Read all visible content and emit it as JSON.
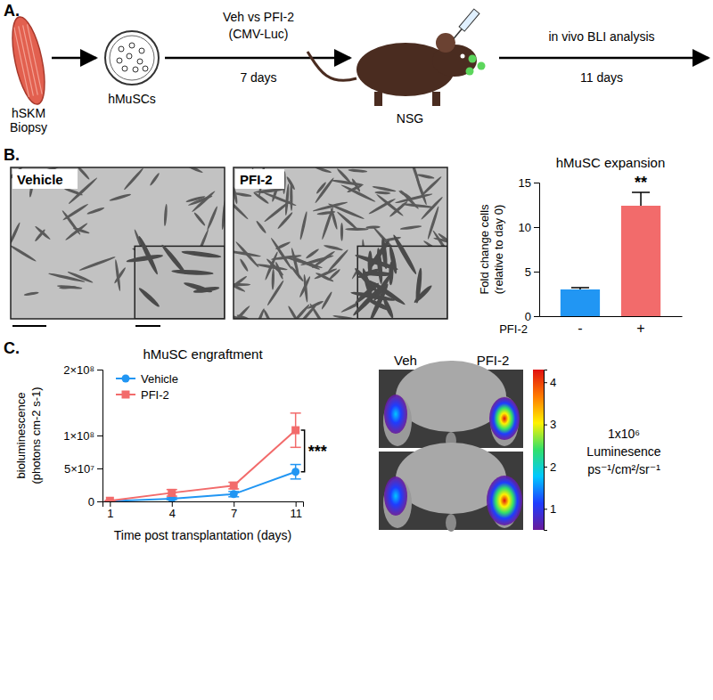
{
  "panel_a": {
    "label": "A.",
    "biopsy": [
      "hSKM",
      "Biopsy"
    ],
    "cells": "hMuSCs",
    "treatment": [
      "Veh vs PFI-2",
      "(CMV-Luc)"
    ],
    "culture_time": "7 days",
    "host": "NSG",
    "analysis": "in vivo BLI analysis",
    "analysis_time": "11 days"
  },
  "panel_b": {
    "label": "B.",
    "image_labels": [
      "Vehicle",
      "PFI-2"
    ]
  },
  "panel_c": {
    "label": "C.",
    "image_labels": [
      "Veh",
      "PFI-2"
    ],
    "colorbar": {
      "range": [
        0.5,
        4.3
      ],
      "ticks": [
        1,
        2,
        3,
        4
      ],
      "title": [
        "1x10⁶",
        "Luminesence",
        "ps⁻¹/cm²/sr⁻¹"
      ]
    }
  },
  "chart_data": [
    {
      "type": "bar",
      "title": "hMuSC expansion",
      "y_label": [
        "Fold change cells",
        "(relative to day 0)"
      ],
      "x_label": "PFI-2",
      "categories": [
        "-",
        "+"
      ],
      "values": [
        3.0,
        12.4
      ],
      "errors": [
        0.2,
        1.5
      ],
      "colors": [
        "#2196f3",
        "#f26b6b"
      ],
      "ylim": [
        0,
        15
      ],
      "yticks": [
        0,
        5,
        10,
        15
      ],
      "annotations": [
        "**"
      ]
    },
    {
      "type": "line",
      "title": "hMuSC engraftment",
      "x_label": "Time post transplantation (days)",
      "y_label": [
        "bioluminescence",
        "(photons cm-2 s-1)"
      ],
      "categories": [
        "1",
        "4",
        "7",
        "11"
      ],
      "series": [
        {
          "name": "Vehicle",
          "color": "#2196f3",
          "marker": "circle",
          "values": [
            500000,
            4000000,
            11000000,
            45000000
          ],
          "errors": [
            200000,
            1500000,
            4000000,
            11000000
          ]
        },
        {
          "name": "PFI-2",
          "color": "#f26b6b",
          "marker": "square",
          "values": [
            1000000,
            13000000,
            24000000,
            108000000
          ],
          "errors": [
            300000,
            5000000,
            5000000,
            26000000
          ]
        }
      ],
      "ylim": [
        0,
        200000000
      ],
      "yticks": [
        0,
        {
          "value": 50000000,
          "label": "5×10⁷"
        },
        {
          "value": 100000000,
          "label": "1×10⁸"
        },
        {
          "value": 200000000,
          "label": "2×10⁸"
        }
      ],
      "legend": "upper left",
      "annotations": [
        "***"
      ]
    }
  ]
}
